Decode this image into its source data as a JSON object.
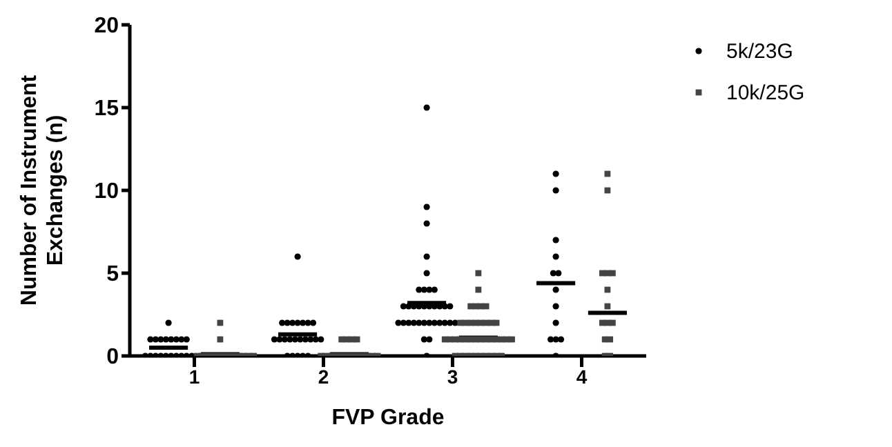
{
  "chart_data": {
    "type": "scatter",
    "xlabel": "FVP Grade",
    "ylabel": "Number of Instrument Exchanges (n)",
    "xlim": [
      0.5,
      4.5
    ],
    "xticks": [
      1,
      2,
      3,
      4
    ],
    "ylim": [
      0,
      20
    ],
    "yticks": [
      0,
      5,
      10,
      15,
      20
    ],
    "legend": "top right",
    "series": [
      {
        "name": "5k/23G",
        "color": "#000000",
        "marker": "circle",
        "x": [
          0.8,
          0.66,
          0.7,
          0.74,
          0.78,
          0.82,
          0.86,
          0.9,
          0.94,
          0.62,
          0.66,
          0.7,
          0.74,
          0.78,
          0.82,
          0.86,
          0.9,
          0.94,
          0.98,
          1.8,
          1.68,
          1.72,
          1.76,
          1.8,
          1.84,
          1.88,
          1.92,
          1.62,
          1.66,
          1.7,
          1.74,
          1.78,
          1.82,
          1.86,
          1.9,
          1.94,
          1.98,
          1.72,
          1.76,
          1.8,
          1.84,
          1.88,
          2.8,
          2.8,
          2.8,
          2.8,
          2.8,
          2.74,
          2.78,
          2.82,
          2.86,
          2.62,
          2.66,
          2.7,
          2.74,
          2.78,
          2.82,
          2.86,
          2.9,
          2.94,
          2.98,
          2.58,
          2.62,
          2.66,
          2.7,
          2.74,
          2.78,
          2.82,
          2.86,
          2.9,
          2.94,
          2.98,
          3.02,
          2.78,
          2.82,
          2.8,
          3.8,
          3.8,
          3.8,
          3.8,
          3.78,
          3.82,
          3.8,
          3.8,
          3.8,
          3.76,
          3.8,
          3.84,
          3.8
        ],
        "values": [
          2,
          1,
          1,
          1,
          1,
          1,
          1,
          1,
          1,
          0,
          0,
          0,
          0,
          0,
          0,
          0,
          0,
          0,
          0,
          6,
          2,
          2,
          2,
          2,
          2,
          2,
          2,
          1,
          1,
          1,
          1,
          1,
          1,
          1,
          1,
          1,
          1,
          0,
          0,
          0,
          0,
          0,
          15,
          9,
          8,
          6,
          5,
          4,
          4,
          4,
          4,
          3,
          3,
          3,
          3,
          3,
          3,
          3,
          3,
          3,
          3,
          2,
          2,
          2,
          2,
          2,
          2,
          2,
          2,
          2,
          2,
          2,
          2,
          1,
          1,
          0,
          11,
          10,
          7,
          6,
          5,
          5,
          4,
          3,
          2,
          1,
          1,
          1,
          0
        ]
      },
      {
        "name": "10k/25G",
        "color": "#444444",
        "marker": "square",
        "x": [
          1.2,
          1.2,
          1.02,
          1.06,
          1.1,
          1.14,
          1.18,
          1.22,
          1.26,
          1.3,
          1.34,
          1.38,
          1.42,
          1.46,
          2.14,
          2.18,
          2.22,
          2.26,
          1.98,
          2.02,
          2.06,
          2.1,
          2.14,
          2.18,
          2.22,
          2.26,
          2.3,
          2.34,
          2.38,
          2.42,
          3.2,
          3.2,
          3.14,
          3.18,
          3.22,
          3.26,
          3.06,
          3.1,
          3.14,
          3.18,
          3.22,
          3.26,
          3.3,
          3.34,
          2.94,
          2.98,
          3.02,
          3.06,
          3.1,
          3.14,
          3.18,
          3.22,
          3.26,
          3.3,
          3.34,
          3.38,
          3.42,
          3.46,
          3.02,
          3.06,
          3.1,
          3.14,
          3.18,
          3.22,
          3.26,
          3.3,
          3.34,
          3.38,
          4.2,
          4.2,
          4.16,
          4.2,
          4.24,
          4.2,
          4.2,
          4.16,
          4.2,
          4.24,
          4.18,
          4.22,
          4.18,
          4.22
        ],
        "values": [
          2,
          1,
          0,
          0,
          0,
          0,
          0,
          0,
          0,
          0,
          0,
          0,
          0,
          0,
          1,
          1,
          1,
          1,
          0,
          0,
          0,
          0,
          0,
          0,
          0,
          0,
          0,
          0,
          0,
          0,
          5,
          4,
          3,
          3,
          3,
          3,
          2,
          2,
          2,
          2,
          2,
          2,
          2,
          2,
          1,
          1,
          1,
          1,
          1,
          1,
          1,
          1,
          1,
          1,
          1,
          1,
          1,
          1,
          0,
          0,
          0,
          0,
          0,
          0,
          0,
          0,
          0,
          0,
          11,
          10,
          5,
          5,
          5,
          4,
          3,
          2,
          2,
          2,
          1,
          1,
          0,
          0
        ]
      },
      {
        "type": "line",
        "color": "#000000",
        "marker": "none",
        "x": [
          0.65,
          0.95,
          null,
          1.65,
          1.95,
          null,
          2.65,
          2.95,
          null,
          3.65,
          3.95
        ],
        "values": [
          0.5,
          0.5,
          null,
          1.3,
          1.3,
          null,
          3.2,
          3.2,
          null,
          4.4,
          4.4
        ]
      },
      {
        "type": "line",
        "color": "#000000",
        "marker": "none",
        "x": [
          1.05,
          1.35,
          null,
          2.05,
          2.35,
          null,
          3.05,
          3.35,
          null,
          4.05,
          4.35
        ],
        "values": [
          0.1,
          0.1,
          null,
          0.1,
          0.1,
          null,
          1.1,
          1.1,
          null,
          2.6,
          2.6
        ]
      }
    ]
  }
}
